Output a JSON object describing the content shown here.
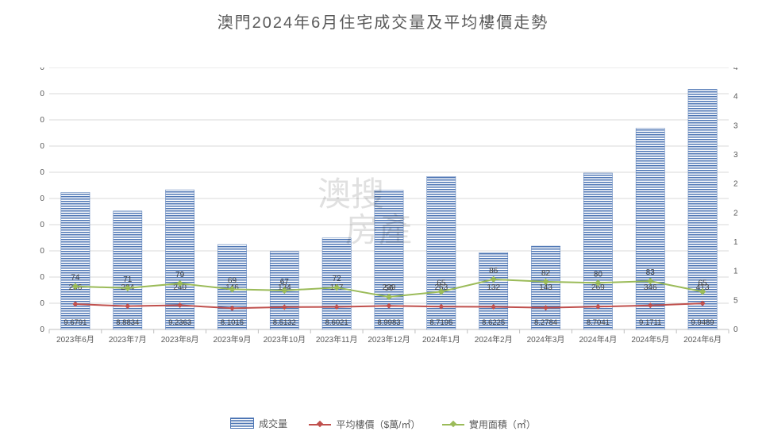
{
  "title": "澳門2024年6月住宅成交量及平均樓價走勢",
  "categories": [
    "2023年6月",
    "2023年7月",
    "2023年8月",
    "2023年9月",
    "2023年10月",
    "2023年11月",
    "2023年12月",
    "2024年1月",
    "2024年2月",
    "2024年3月",
    "2024年4月",
    "2024年5月",
    "2024年6月"
  ],
  "transactions": {
    "label": "成交量",
    "swatch_type": "bar",
    "values": [
      52.3,
      45.2,
      53.3,
      32.4,
      29.8,
      34.9,
      53.1,
      58.4,
      29.3,
      31.8,
      59.7,
      76.8,
      91.7
    ],
    "bar_inner_labels": [
      236,
      204,
      240,
      146,
      134,
      157,
      239,
      263,
      132,
      143,
      269,
      346,
      413
    ],
    "color": "#4e76b4",
    "bar_fill": "hatched",
    "axis": "left"
  },
  "avg_price": {
    "label": "平均樓價（$萬/㎡）",
    "swatch_type": "line",
    "values": [
      9.6791,
      8.8834,
      9.2363,
      8.1015,
      8.5132,
      8.6021,
      8.9983,
      8.7195,
      8.6225,
      8.2784,
      8.7041,
      9.1711,
      9.9489
    ],
    "bottom_labels": [
      "9.6791",
      "8.8834",
      "9.2363",
      "8.1015",
      "8.5132",
      "8.6021",
      "8.9983",
      "8.7195",
      "8.6225",
      "8.2784",
      "8.7041",
      "9.1711",
      "9.9489"
    ],
    "color": "#c0504d",
    "line_width": 2,
    "marker": "diamond",
    "axis": "left"
  },
  "area": {
    "label": "實用面積（㎡）",
    "swatch_type": "line",
    "values": [
      74,
      71,
      79,
      69,
      67,
      72,
      56,
      65,
      86,
      82,
      80,
      83,
      65
    ],
    "point_labels": [
      "74",
      "71",
      "79",
      "69",
      "67",
      "72",
      "56",
      "65",
      "86",
      "82",
      "80",
      "83",
      "65"
    ],
    "color": "#9bbb59",
    "line_width": 2,
    "marker": "diamond",
    "axis": "right"
  },
  "left_axis": {
    "min": 0.0,
    "max": 100.0,
    "step": 10.0,
    "decimals": 4,
    "label_color": "#595959",
    "fontsize": 10
  },
  "right_axis": {
    "min": 0,
    "max": 450,
    "step": 50,
    "decimals": 0,
    "label_color": "#595959",
    "fontsize": 10
  },
  "grid_color": "#d9d9d9",
  "axis_line_color": "#bfbfbf",
  "category_fontsize": 10,
  "category_color": "#595959",
  "bar_group_width_ratio": 0.55,
  "watermark": {
    "line1": "澳搜",
    "line2": "房產"
  }
}
